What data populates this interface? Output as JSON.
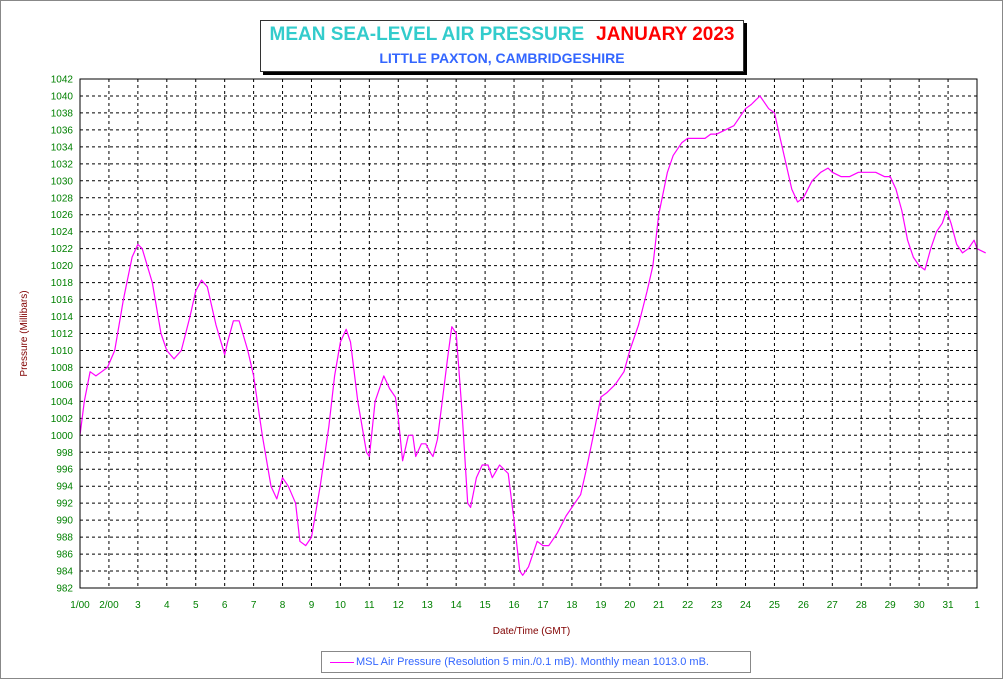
{
  "colors": {
    "series": "#ff00ff",
    "title_main": "#33cccc",
    "title_date": "#ff0000",
    "subtitle": "#3366ff",
    "ticks": "#008000",
    "axis_labels": "#800000",
    "grid": "#000000"
  },
  "chart_data": {
    "type": "line",
    "title": "MEAN SEA-LEVEL AIR PRESSURE",
    "title_date": "JANUARY 2023",
    "subtitle": "LITTLE PAXTON, CAMBRIDGESHIRE",
    "xlabel": "Date/Time (GMT)",
    "ylabel": "Pressure (Millibars)",
    "ylim": [
      982,
      1042
    ],
    "ytick_step": 2,
    "xlim": [
      1,
      32
    ],
    "xticks": [
      {
        "value": 1,
        "label": "1/00"
      },
      {
        "value": 2,
        "label": "2/00"
      },
      {
        "value": 3,
        "label": "3"
      },
      {
        "value": 4,
        "label": "4"
      },
      {
        "value": 5,
        "label": "5"
      },
      {
        "value": 6,
        "label": "6"
      },
      {
        "value": 7,
        "label": "7"
      },
      {
        "value": 8,
        "label": "8"
      },
      {
        "value": 9,
        "label": "9"
      },
      {
        "value": 10,
        "label": "10"
      },
      {
        "value": 11,
        "label": "11"
      },
      {
        "value": 12,
        "label": "12"
      },
      {
        "value": 13,
        "label": "13"
      },
      {
        "value": 14,
        "label": "14"
      },
      {
        "value": 15,
        "label": "15"
      },
      {
        "value": 16,
        "label": "16"
      },
      {
        "value": 17,
        "label": "17"
      },
      {
        "value": 18,
        "label": "18"
      },
      {
        "value": 19,
        "label": "19"
      },
      {
        "value": 20,
        "label": "20"
      },
      {
        "value": 21,
        "label": "21"
      },
      {
        "value": 22,
        "label": "22"
      },
      {
        "value": 23,
        "label": "23"
      },
      {
        "value": 24,
        "label": "24"
      },
      {
        "value": 25,
        "label": "25"
      },
      {
        "value": 26,
        "label": "26"
      },
      {
        "value": 27,
        "label": "27"
      },
      {
        "value": 28,
        "label": "28"
      },
      {
        "value": 29,
        "label": "29"
      },
      {
        "value": 30,
        "label": "30"
      },
      {
        "value": 31,
        "label": "31"
      },
      {
        "value": 32,
        "label": "1"
      }
    ],
    "grid": true,
    "legend_position": "bottom-center",
    "legend_label": "MSL Air Pressure (Resolution 5 min./0.1 mB). Monthly mean 1013.0 mB.",
    "series": [
      {
        "name": "MSL Air Pressure (Resolution 5 min./0.1 mB). Monthly mean 1013.0 mB.",
        "x": [
          1.0,
          1.15,
          1.35,
          1.55,
          1.75,
          1.95,
          2.2,
          2.5,
          2.8,
          3.0,
          3.15,
          3.5,
          3.8,
          4.0,
          4.25,
          4.5,
          4.8,
          5.0,
          5.2,
          5.4,
          5.7,
          6.0,
          6.1,
          6.3,
          6.5,
          6.8,
          7.0,
          7.3,
          7.6,
          7.8,
          8.0,
          8.2,
          8.45,
          8.6,
          8.8,
          9.0,
          9.3,
          9.6,
          9.8,
          10.0,
          10.2,
          10.35,
          10.6,
          10.9,
          11.0,
          11.2,
          11.5,
          11.7,
          11.9,
          12.0,
          12.15,
          12.35,
          12.5,
          12.6,
          12.8,
          12.95,
          13.1,
          13.2,
          13.35,
          13.5,
          13.7,
          13.85,
          14.0,
          14.2,
          14.4,
          14.5,
          14.7,
          14.9,
          15.1,
          15.25,
          15.5,
          15.8,
          16.0,
          16.2,
          16.3,
          16.5,
          16.8,
          17.0,
          17.2,
          17.5,
          17.8,
          18.0,
          18.3,
          18.5,
          18.8,
          19.0,
          19.2,
          19.5,
          19.8,
          20.0,
          20.3,
          20.6,
          20.8,
          21.0,
          21.3,
          21.5,
          21.8,
          22.0,
          22.3,
          22.6,
          22.8,
          23.0,
          23.3,
          23.6,
          23.8,
          24.0,
          24.2,
          24.35,
          24.5,
          24.8,
          25.0,
          25.2,
          25.4,
          25.6,
          25.8,
          26.0,
          26.3,
          26.6,
          26.85,
          27.0,
          27.3,
          27.6,
          27.9,
          28.2,
          28.5,
          28.8,
          29.0,
          29.2,
          29.4,
          29.6,
          29.8,
          30.0,
          30.2,
          30.4,
          30.6,
          30.8,
          30.95,
          31.1,
          31.3,
          31.5,
          31.7,
          31.9,
          32.0,
          32.3
        ],
        "values": [
          1000,
          1004,
          1007.5,
          1007,
          1007.5,
          1008,
          1010,
          1016,
          1021,
          1022.5,
          1022,
          1018,
          1012,
          1010,
          1009,
          1010,
          1014,
          1017,
          1018.3,
          1017.5,
          1013,
          1009.5,
          1011,
          1013.5,
          1013.5,
          1010,
          1007,
          1000,
          994,
          992.5,
          995,
          994,
          992,
          987.5,
          987,
          988,
          994,
          1001,
          1007,
          1011,
          1012.5,
          1011,
          1004,
          998,
          997.5,
          1004,
          1007,
          1005.5,
          1004.5,
          1002,
          997,
          1000,
          1000,
          997.5,
          999,
          999,
          998,
          997.5,
          999.5,
          1003.5,
          1009,
          1012.8,
          1012,
          1003,
          992,
          991.5,
          995,
          996.5,
          996.5,
          995,
          996.5,
          995.5,
          990,
          984,
          983.5,
          984.5,
          987.5,
          987,
          987,
          988.5,
          990.5,
          991.5,
          993,
          996,
          1001,
          1004.5,
          1005,
          1006,
          1007.5,
          1010,
          1013,
          1017,
          1020,
          1026,
          1031,
          1033,
          1034.5,
          1035,
          1035,
          1035,
          1035.5,
          1035.5,
          1036,
          1036.5,
          1037.5,
          1038.5,
          1039,
          1039.5,
          1040,
          1038.5,
          1038,
          1035,
          1032,
          1029,
          1027.5,
          1028,
          1030,
          1031,
          1031.5,
          1031,
          1030.5,
          1030.5,
          1031,
          1031,
          1031,
          1030.5,
          1030.5,
          1029,
          1026.5,
          1023,
          1021,
          1020,
          1019.5,
          1022,
          1024,
          1025,
          1026.5,
          1025,
          1022.5,
          1021.5,
          1022,
          1023,
          1022,
          1021.5
        ]
      }
    ]
  }
}
